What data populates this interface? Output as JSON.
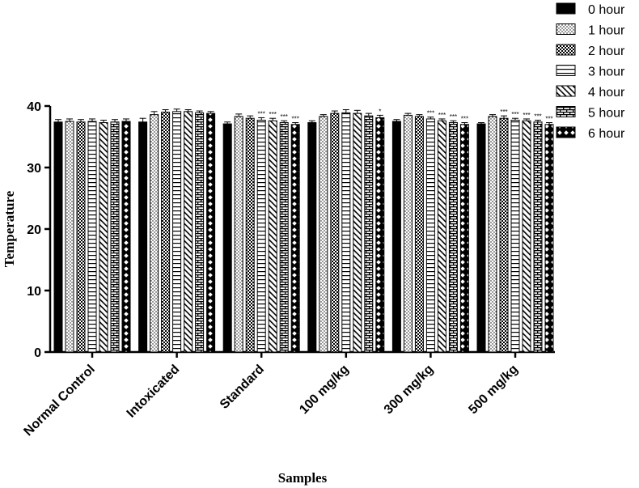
{
  "chart_data": {
    "type": "bar",
    "title": "",
    "xlabel": "Samples",
    "ylabel": "Temperature",
    "ylim": [
      0,
      40
    ],
    "yticks": [
      "0",
      "10",
      "20",
      "30",
      "40"
    ],
    "legend_position": "top-right",
    "categories": [
      "Normal Control",
      "Intoxicated",
      "Standard",
      "100 mg/kg",
      "300 mg/kg",
      "500 mg/kg"
    ],
    "series": [
      {
        "name": "0 hour",
        "pattern": "solid",
        "values": [
          37.4,
          37.4,
          37.1,
          37.3,
          37.5,
          37.1
        ],
        "errors": [
          0.4,
          0.6,
          0.3,
          0.3,
          0.3,
          0.2
        ],
        "sig": [
          "",
          "",
          "",
          "",
          "",
          ""
        ]
      },
      {
        "name": "1 hour",
        "pattern": "dots",
        "values": [
          37.5,
          38.6,
          38.3,
          38.3,
          38.5,
          38.3
        ],
        "errors": [
          0.4,
          0.5,
          0.4,
          0.3,
          0.3,
          0.3
        ],
        "sig": [
          "",
          "",
          "",
          "",
          "",
          ""
        ]
      },
      {
        "name": "2 hour",
        "pattern": "checker",
        "values": [
          37.4,
          39.0,
          38.0,
          38.8,
          38.3,
          38.0
        ],
        "errors": [
          0.4,
          0.4,
          0.4,
          0.4,
          0.3,
          0.4
        ],
        "sig": [
          "",
          "",
          "",
          "",
          "",
          "***"
        ]
      },
      {
        "name": "3 hour",
        "pattern": "hlines",
        "values": [
          37.5,
          39.1,
          37.7,
          38.9,
          37.9,
          37.7
        ],
        "errors": [
          0.4,
          0.4,
          0.4,
          0.5,
          0.3,
          0.3
        ],
        "sig": [
          "",
          "",
          "***",
          "",
          "***",
          "***"
        ]
      },
      {
        "name": "4 hour",
        "pattern": "diag",
        "values": [
          37.3,
          39.1,
          37.6,
          38.8,
          37.6,
          37.6
        ],
        "errors": [
          0.4,
          0.3,
          0.4,
          0.5,
          0.3,
          0.3
        ],
        "sig": [
          "",
          "",
          "***",
          "",
          "***",
          "***"
        ]
      },
      {
        "name": "5 hour",
        "pattern": "brick",
        "values": [
          37.4,
          38.9,
          37.3,
          38.4,
          37.3,
          37.4
        ],
        "errors": [
          0.4,
          0.3,
          0.3,
          0.4,
          0.3,
          0.3
        ],
        "sig": [
          "",
          "",
          "***",
          "",
          "***",
          "***"
        ]
      },
      {
        "name": "6 hour",
        "pattern": "diamond",
        "values": [
          37.5,
          38.8,
          37.0,
          38.1,
          37.0,
          37.0
        ],
        "errors": [
          0.4,
          0.3,
          0.3,
          0.4,
          0.3,
          0.3
        ],
        "sig": [
          "",
          "",
          "***",
          "*",
          "***",
          "***"
        ]
      }
    ]
  }
}
